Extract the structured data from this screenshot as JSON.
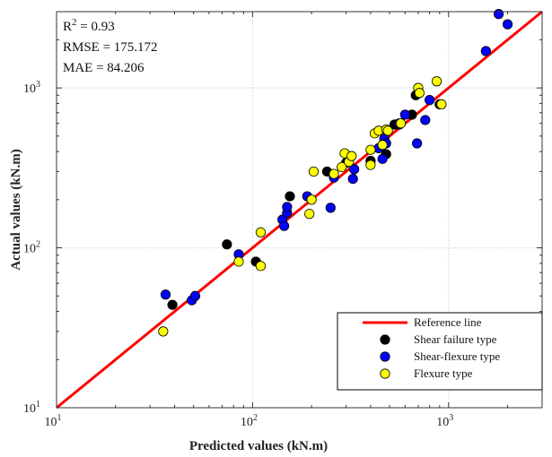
{
  "chart_data": {
    "type": "scatter",
    "xlabel": "Predicted values (kN.m)",
    "ylabel": "Actual values (kN.m)",
    "scale": "log",
    "xlim": [
      10,
      3000
    ],
    "ylim": [
      10,
      3000
    ],
    "x_ticks": [
      {
        "value": 10,
        "base": "10",
        "exp": "1"
      },
      {
        "value": 100,
        "base": "10",
        "exp": "2"
      },
      {
        "value": 1000,
        "base": "10",
        "exp": "3"
      }
    ],
    "y_ticks": [
      {
        "value": 10,
        "base": "10",
        "exp": "1"
      },
      {
        "value": 100,
        "base": "10",
        "exp": "2"
      },
      {
        "value": 1000,
        "base": "10",
        "exp": "3"
      }
    ],
    "grid": true,
    "stats": {
      "r2_prefix": "R",
      "r2_exp": "2",
      "r2_value": " = 0.93",
      "rmse": "RMSE = 175.172",
      "mae": "MAE = 84.206"
    },
    "legend": {
      "position": "bottom-right",
      "reference_label": "Reference line",
      "reference_color": "#ff0000"
    },
    "series": [
      {
        "name": "Shear failure type",
        "color": "#000000",
        "points": [
          [
            39,
            44
          ],
          [
            74,
            105
          ],
          [
            104,
            82
          ],
          [
            155,
            210
          ],
          [
            240,
            300
          ],
          [
            300,
            340
          ],
          [
            400,
            350
          ],
          [
            480,
            385
          ],
          [
            530,
            590
          ],
          [
            560,
            590
          ],
          [
            650,
            680
          ],
          [
            680,
            900
          ],
          [
            900,
            790
          ]
        ]
      },
      {
        "name": "Shear-flexure type",
        "color": "#0000ff",
        "points": [
          [
            36,
            51
          ],
          [
            49,
            47
          ],
          [
            51,
            50
          ],
          [
            85,
            91
          ],
          [
            142,
            150
          ],
          [
            145,
            137
          ],
          [
            150,
            165
          ],
          [
            150,
            180
          ],
          [
            190,
            210
          ],
          [
            250,
            178
          ],
          [
            260,
            275
          ],
          [
            325,
            270
          ],
          [
            330,
            310
          ],
          [
            440,
            420
          ],
          [
            460,
            360
          ],
          [
            470,
            480
          ],
          [
            480,
            450
          ],
          [
            560,
            600
          ],
          [
            600,
            680
          ],
          [
            690,
            450
          ],
          [
            760,
            630
          ],
          [
            800,
            840
          ],
          [
            1550,
            1700
          ],
          [
            1800,
            2900
          ],
          [
            2000,
            2500
          ]
        ]
      },
      {
        "name": "Flexure type",
        "color": "#ffff00",
        "points": [
          [
            35,
            30
          ],
          [
            85,
            82
          ],
          [
            110,
            77
          ],
          [
            110,
            125
          ],
          [
            195,
            163
          ],
          [
            200,
            200
          ],
          [
            205,
            300
          ],
          [
            260,
            290
          ],
          [
            285,
            320
          ],
          [
            295,
            390
          ],
          [
            310,
            345
          ],
          [
            320,
            375
          ],
          [
            400,
            330
          ],
          [
            400,
            410
          ],
          [
            420,
            520
          ],
          [
            440,
            540
          ],
          [
            460,
            440
          ],
          [
            480,
            550
          ],
          [
            490,
            540
          ],
          [
            570,
            600
          ],
          [
            700,
            1000
          ],
          [
            710,
            930
          ],
          [
            870,
            1100
          ],
          [
            920,
            790
          ]
        ]
      }
    ]
  }
}
